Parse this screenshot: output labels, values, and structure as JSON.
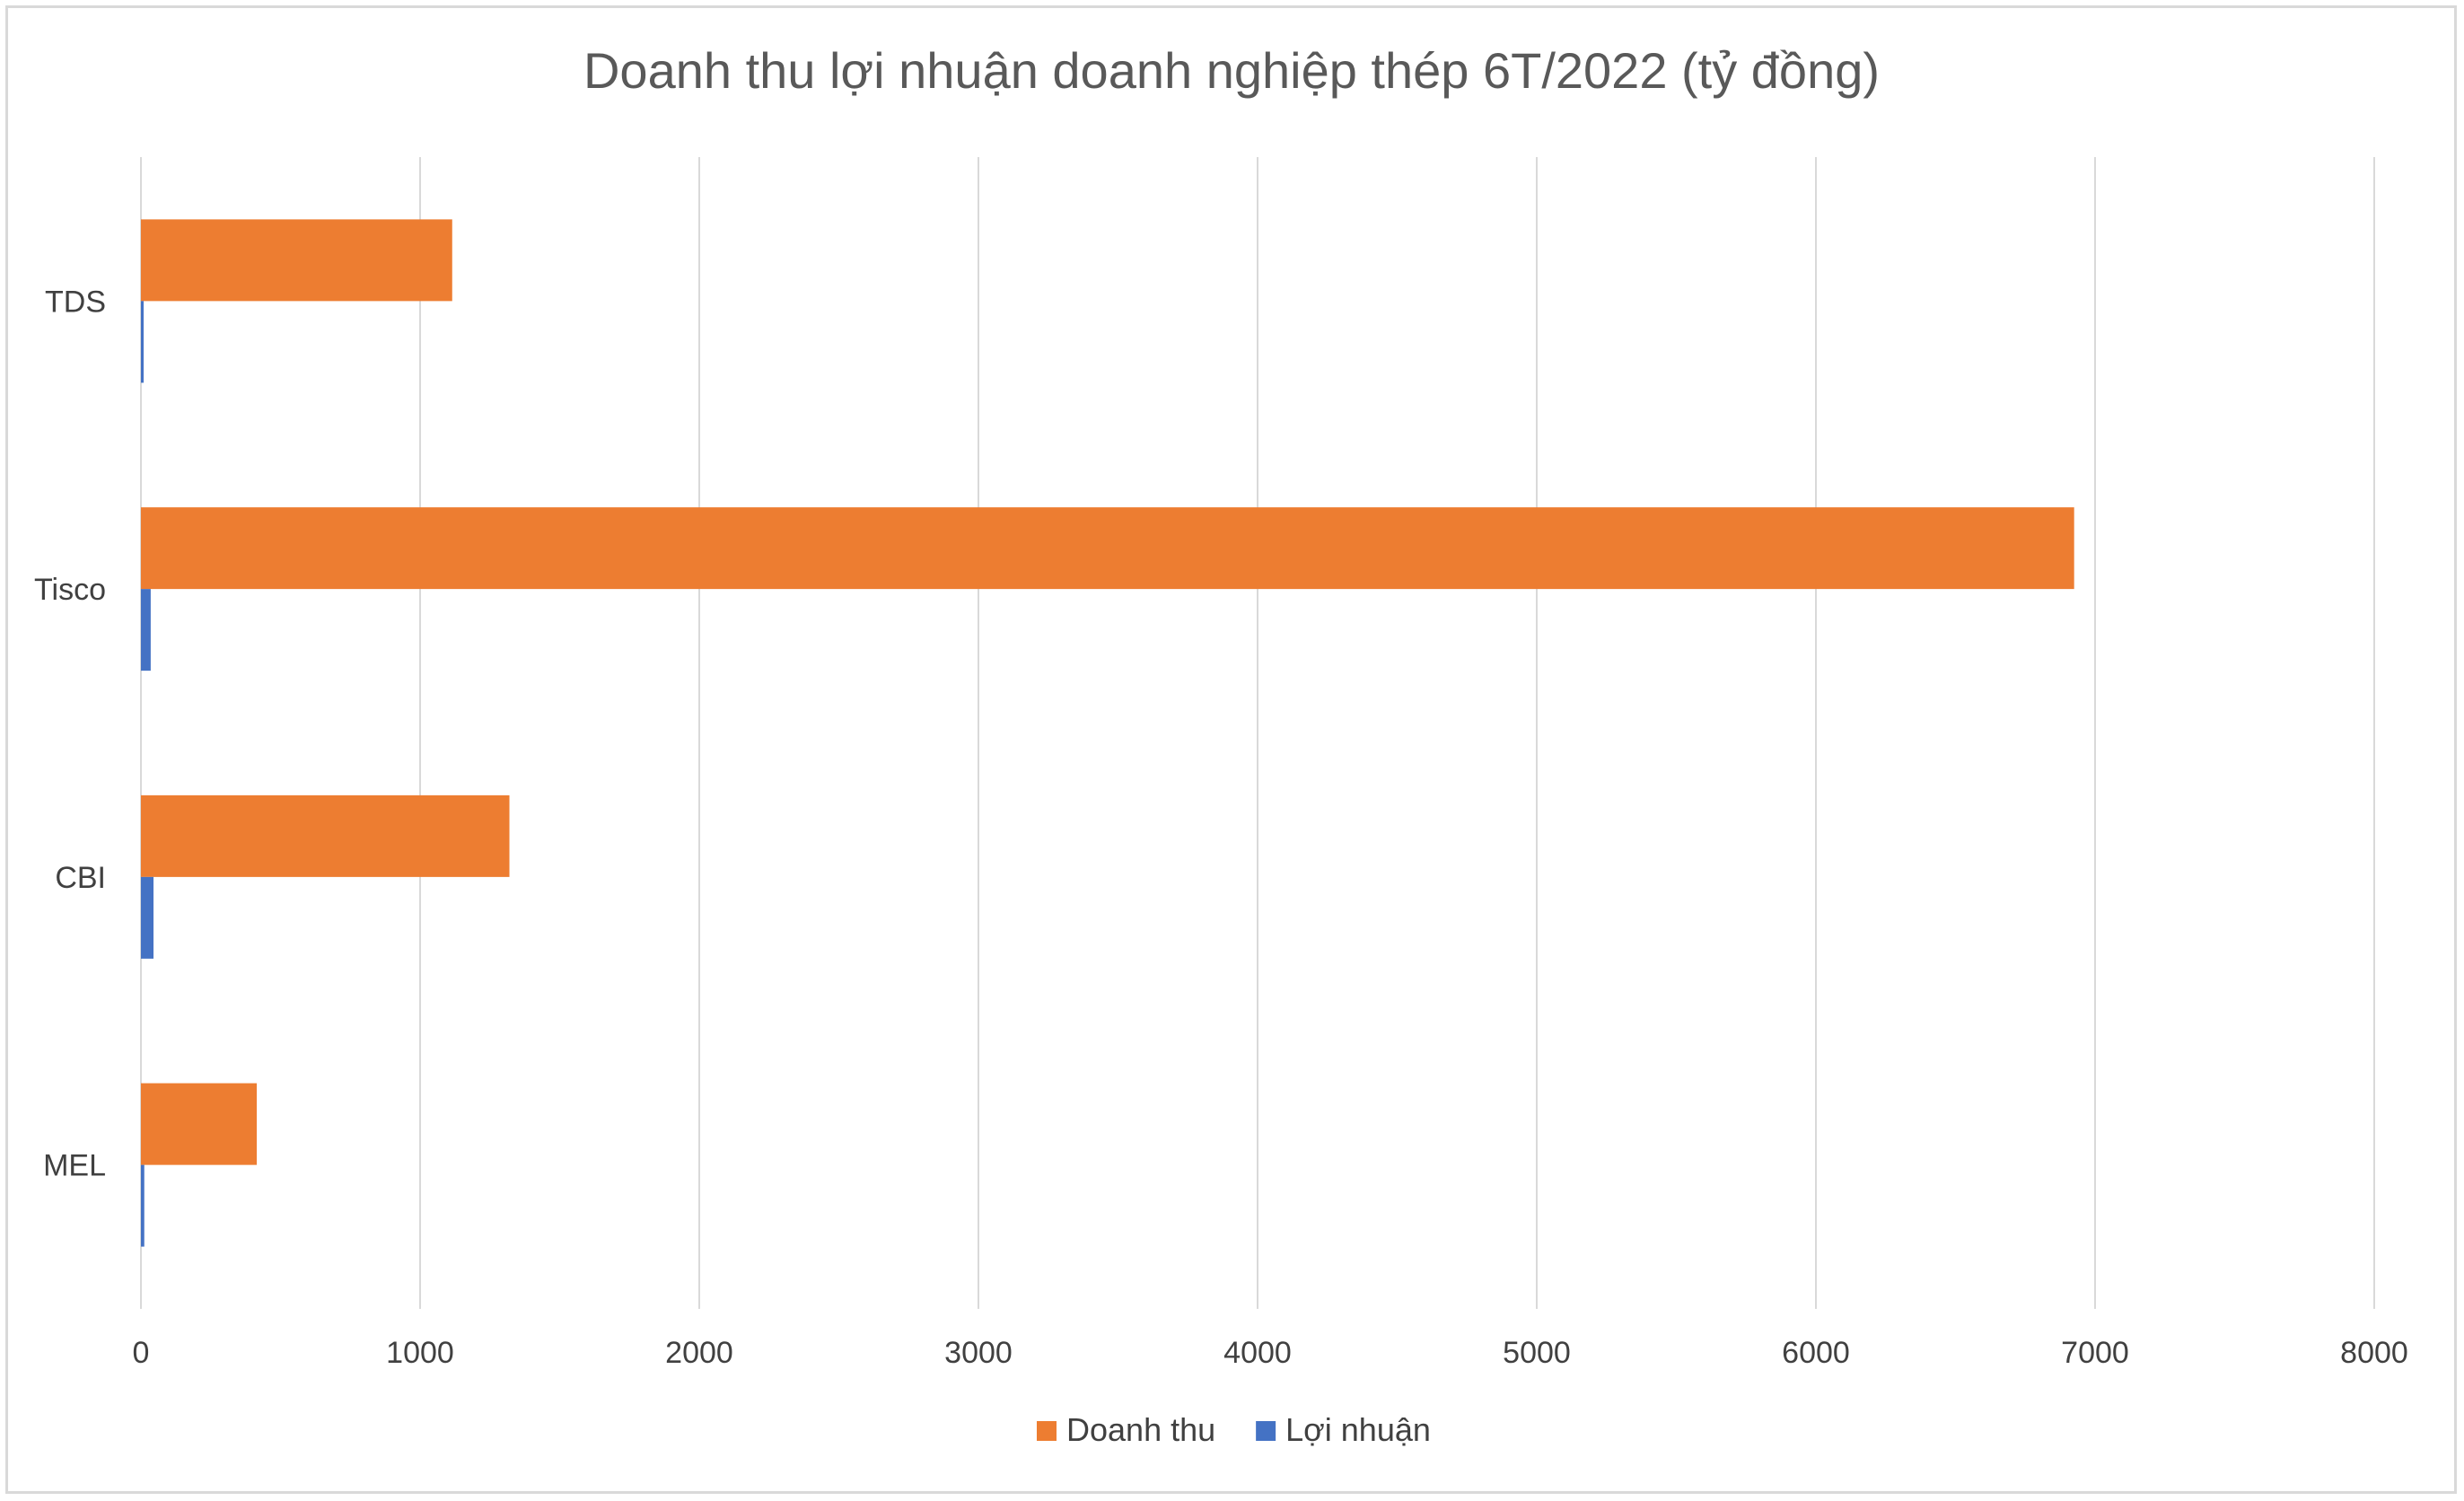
{
  "chart_data": {
    "type": "bar",
    "orientation": "horizontal",
    "title": "Doanh thu lợi nhuận doanh nghiệp thép 6T/2022 (tỷ đồng)",
    "categories": [
      "TDS",
      "Tisco",
      "CBI",
      "MEL"
    ],
    "series": [
      {
        "name": "Doanh thu",
        "color": "#ed7d31",
        "values": [
          1115,
          6925,
          1320,
          415
        ]
      },
      {
        "name": "Lợi nhuận",
        "color": "#4472c4",
        "values": [
          5,
          35,
          45,
          12
        ]
      }
    ],
    "xlim": [
      0,
      8000
    ],
    "xticks": [
      "0",
      "1000",
      "2000",
      "3000",
      "4000",
      "5000",
      "6000",
      "7000",
      "8000"
    ],
    "grid": "vertical",
    "legend_position": "bottom"
  }
}
